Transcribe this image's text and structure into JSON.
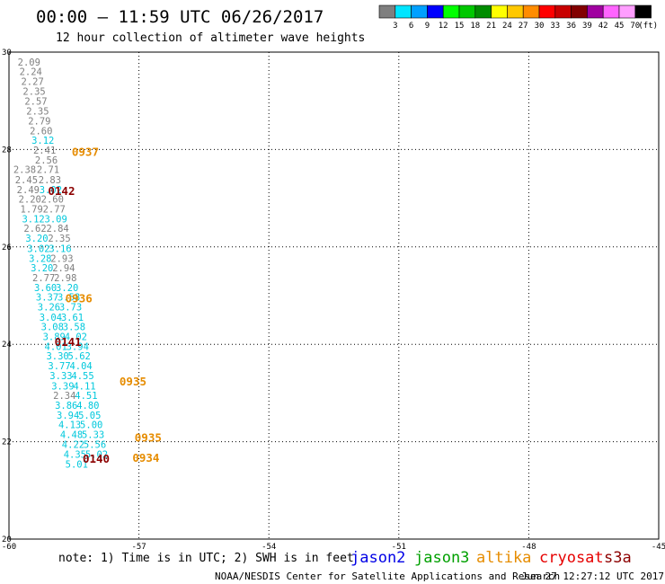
{
  "header": {
    "title": "00:00 – 11:59 UTC 06/26/2017",
    "subtitle": "12 hour collection of altimeter wave heights"
  },
  "scale": {
    "colors": [
      "#7f7f7f",
      "#00e5ff",
      "#00a0ff",
      "#0000ff",
      "#00ff00",
      "#00c800",
      "#008c00",
      "#ffff00",
      "#ffc800",
      "#ff8c00",
      "#ff0000",
      "#c80000",
      "#820000",
      "#a000a0",
      "#ff64ff",
      "#ff9eff",
      "#000000"
    ],
    "labels": [
      "3",
      "6",
      "9",
      "12",
      "15",
      "18",
      "21",
      "24",
      "27",
      "30",
      "33",
      "36",
      "39",
      "42",
      "45",
      "70"
    ],
    "unit": "(ft)"
  },
  "chart_data": {
    "type": "scatter",
    "xlim": [
      -60,
      -45
    ],
    "ylim": [
      20,
      30
    ],
    "x_ticks": [
      "-60",
      "-57",
      "-54",
      "-51",
      "-48",
      "-45"
    ],
    "y_ticks": [
      "20",
      "22",
      "24",
      "26",
      "28",
      "30"
    ],
    "grid": true,
    "observations": [
      {
        "lon": -59.8,
        "lat": 29.8,
        "v": "2.09",
        "c": "#7f7f7f"
      },
      {
        "lon": -59.76,
        "lat": 29.6,
        "v": "2.24",
        "c": "#7f7f7f"
      },
      {
        "lon": -59.72,
        "lat": 29.4,
        "v": "2.27",
        "c": "#7f7f7f"
      },
      {
        "lon": -59.68,
        "lat": 29.2,
        "v": "2.35",
        "c": "#7f7f7f"
      },
      {
        "lon": -59.64,
        "lat": 28.99,
        "v": "2.57",
        "c": "#7f7f7f"
      },
      {
        "lon": -59.6,
        "lat": 28.79,
        "v": "2.35",
        "c": "#7f7f7f"
      },
      {
        "lon": -59.56,
        "lat": 28.59,
        "v": "2.79",
        "c": "#7f7f7f"
      },
      {
        "lon": -59.52,
        "lat": 28.39,
        "v": "2.60",
        "c": "#7f7f7f"
      },
      {
        "lon": -59.48,
        "lat": 28.19,
        "v": "3.12",
        "c": "#00c8dc"
      },
      {
        "lon": -59.44,
        "lat": 27.99,
        "v": "2.41",
        "c": "#7f7f7f"
      },
      {
        "lon": -59.4,
        "lat": 27.79,
        "v": "2.56",
        "c": "#7f7f7f"
      },
      {
        "lon": -59.36,
        "lat": 27.59,
        "v": "2.71",
        "c": "#7f7f7f"
      },
      {
        "lon": -59.32,
        "lat": 27.38,
        "v": "2.83",
        "c": "#7f7f7f"
      },
      {
        "lon": -59.3,
        "lat": 27.18,
        "v": "3.02",
        "c": "#00c8dc"
      },
      {
        "lon": -59.26,
        "lat": 26.98,
        "v": "2.60",
        "c": "#7f7f7f"
      },
      {
        "lon": -59.22,
        "lat": 26.78,
        "v": "2.77",
        "c": "#7f7f7f"
      },
      {
        "lon": -59.18,
        "lat": 26.58,
        "v": "3.09",
        "c": "#00c8dc"
      },
      {
        "lon": -59.14,
        "lat": 26.38,
        "v": "2.84",
        "c": "#7f7f7f"
      },
      {
        "lon": -59.1,
        "lat": 26.18,
        "v": "2.35",
        "c": "#7f7f7f"
      },
      {
        "lon": -59.08,
        "lat": 25.97,
        "v": "3.16",
        "c": "#00c8dc"
      },
      {
        "lon": -59.04,
        "lat": 25.77,
        "v": "2.93",
        "c": "#7f7f7f"
      },
      {
        "lon": -59.0,
        "lat": 25.57,
        "v": "2.94",
        "c": "#7f7f7f"
      },
      {
        "lon": -58.96,
        "lat": 25.37,
        "v": "2.98",
        "c": "#7f7f7f"
      },
      {
        "lon": -58.92,
        "lat": 25.17,
        "v": "3.20",
        "c": "#00c8dc"
      },
      {
        "lon": -58.88,
        "lat": 24.97,
        "v": "3.58",
        "c": "#00c8dc"
      },
      {
        "lon": -58.84,
        "lat": 24.77,
        "v": "3.73",
        "c": "#00c8dc"
      },
      {
        "lon": -58.8,
        "lat": 24.56,
        "v": "3.61",
        "c": "#00c8dc"
      },
      {
        "lon": -58.76,
        "lat": 24.36,
        "v": "3.58",
        "c": "#00c8dc"
      },
      {
        "lon": -58.72,
        "lat": 24.16,
        "v": "4.02",
        "c": "#00c8dc"
      },
      {
        "lon": -58.68,
        "lat": 23.96,
        "v": "3.94",
        "c": "#00c8dc"
      },
      {
        "lon": -58.64,
        "lat": 23.76,
        "v": "5.62",
        "c": "#00c8dc"
      },
      {
        "lon": -58.6,
        "lat": 23.56,
        "v": "4.04",
        "c": "#00c8dc"
      },
      {
        "lon": -58.56,
        "lat": 23.36,
        "v": "4.55",
        "c": "#00c8dc"
      },
      {
        "lon": -58.52,
        "lat": 23.15,
        "v": "4.11",
        "c": "#00c8dc"
      },
      {
        "lon": -58.48,
        "lat": 22.95,
        "v": "4.51",
        "c": "#00c8dc"
      },
      {
        "lon": -58.44,
        "lat": 22.75,
        "v": "4.80",
        "c": "#00c8dc"
      },
      {
        "lon": -58.4,
        "lat": 22.55,
        "v": "5.05",
        "c": "#00c8dc"
      },
      {
        "lon": -58.36,
        "lat": 22.35,
        "v": "5.00",
        "c": "#00c8dc"
      },
      {
        "lon": -58.32,
        "lat": 22.15,
        "v": "5.33",
        "c": "#00c8dc"
      },
      {
        "lon": -58.28,
        "lat": 21.95,
        "v": "5.56",
        "c": "#00c8dc"
      },
      {
        "lon": -58.24,
        "lat": 21.74,
        "v": "5.02",
        "c": "#00c8dc"
      },
      {
        "lon": -59.9,
        "lat": 27.59,
        "v": "2.38",
        "c": "#7f7f7f"
      },
      {
        "lon": -59.86,
        "lat": 27.38,
        "v": "2.45",
        "c": "#7f7f7f"
      },
      {
        "lon": -59.82,
        "lat": 27.18,
        "v": "2.49",
        "c": "#7f7f7f"
      },
      {
        "lon": -59.78,
        "lat": 26.98,
        "v": "2.20",
        "c": "#7f7f7f"
      },
      {
        "lon": -59.74,
        "lat": 26.78,
        "v": "1.79",
        "c": "#7f7f7f"
      },
      {
        "lon": -59.7,
        "lat": 26.58,
        "v": "3.12",
        "c": "#00c8dc"
      },
      {
        "lon": -59.66,
        "lat": 26.38,
        "v": "2.62",
        "c": "#7f7f7f"
      },
      {
        "lon": -59.62,
        "lat": 26.18,
        "v": "3.20",
        "c": "#00c8dc"
      },
      {
        "lon": -59.58,
        "lat": 25.97,
        "v": "3.02",
        "c": "#00c8dc"
      },
      {
        "lon": -59.54,
        "lat": 25.77,
        "v": "3.28",
        "c": "#00c8dc"
      },
      {
        "lon": -59.5,
        "lat": 25.57,
        "v": "3.20",
        "c": "#00c8dc"
      },
      {
        "lon": -59.46,
        "lat": 25.37,
        "v": "2.77",
        "c": "#7f7f7f"
      },
      {
        "lon": -59.42,
        "lat": 25.17,
        "v": "3.60",
        "c": "#00c8dc"
      },
      {
        "lon": -59.38,
        "lat": 24.97,
        "v": "3.37",
        "c": "#00c8dc"
      },
      {
        "lon": -59.34,
        "lat": 24.77,
        "v": "3.26",
        "c": "#00c8dc"
      },
      {
        "lon": -59.3,
        "lat": 24.56,
        "v": "3.04",
        "c": "#00c8dc"
      },
      {
        "lon": -59.26,
        "lat": 24.36,
        "v": "3.08",
        "c": "#00c8dc"
      },
      {
        "lon": -59.22,
        "lat": 24.16,
        "v": "3.89",
        "c": "#00c8dc"
      },
      {
        "lon": -59.18,
        "lat": 23.96,
        "v": "4.01",
        "c": "#00c8dc"
      },
      {
        "lon": -59.14,
        "lat": 23.76,
        "v": "3.30",
        "c": "#00c8dc"
      },
      {
        "lon": -59.1,
        "lat": 23.56,
        "v": "3.77",
        "c": "#00c8dc"
      },
      {
        "lon": -59.06,
        "lat": 23.36,
        "v": "3.33",
        "c": "#00c8dc"
      },
      {
        "lon": -59.02,
        "lat": 23.15,
        "v": "3.39",
        "c": "#00c8dc"
      },
      {
        "lon": -58.98,
        "lat": 22.95,
        "v": "2.34",
        "c": "#7f7f7f"
      },
      {
        "lon": -58.94,
        "lat": 22.75,
        "v": "3.86",
        "c": "#00c8dc"
      },
      {
        "lon": -58.9,
        "lat": 22.55,
        "v": "3.94",
        "c": "#00c8dc"
      },
      {
        "lon": -58.86,
        "lat": 22.35,
        "v": "4.13",
        "c": "#00c8dc"
      },
      {
        "lon": -58.82,
        "lat": 22.15,
        "v": "4.48",
        "c": "#00c8dc"
      },
      {
        "lon": -58.78,
        "lat": 21.95,
        "v": "4.22",
        "c": "#00c8dc"
      },
      {
        "lon": -58.74,
        "lat": 21.74,
        "v": "4.35",
        "c": "#00c8dc"
      },
      {
        "lon": -58.7,
        "lat": 21.54,
        "v": "5.01",
        "c": "#00c8dc"
      }
    ],
    "pass_times": [
      {
        "lon": -58.55,
        "lat": 27.94,
        "t": "0937",
        "c": "#e68c00"
      },
      {
        "lon": -59.1,
        "lat": 27.14,
        "t": "0142",
        "c": "#8c0000"
      },
      {
        "lon": -58.7,
        "lat": 24.94,
        "t": "0936",
        "c": "#e68c00"
      },
      {
        "lon": -58.95,
        "lat": 24.04,
        "t": "0141",
        "c": "#8c0000"
      },
      {
        "lon": -57.45,
        "lat": 23.23,
        "t": "0935",
        "c": "#e68c00"
      },
      {
        "lon": -57.1,
        "lat": 22.08,
        "t": "0935",
        "c": "#e68c00"
      },
      {
        "lon": -58.3,
        "lat": 21.64,
        "t": "0140",
        "c": "#8c0000"
      },
      {
        "lon": -57.15,
        "lat": 21.66,
        "t": "0934",
        "c": "#e68c00"
      }
    ]
  },
  "notes": {
    "note": "note:  1) Time is in UTC;  2) SWH is in feet"
  },
  "missions": [
    {
      "label": "jason2",
      "color": "#0000e6"
    },
    {
      "label": "jason3",
      "color": "#00a000"
    },
    {
      "label": "altika",
      "color": "#e68c00"
    },
    {
      "label": "cryosat",
      "color": "#e60000"
    },
    {
      "label": "s3a",
      "color": "#8c0000"
    }
  ],
  "footer": {
    "credit": "NOAA/NESDIS Center for Satellite Applications and Research",
    "timestamp": "Jun 27 12:27:12 UTC 2017"
  }
}
